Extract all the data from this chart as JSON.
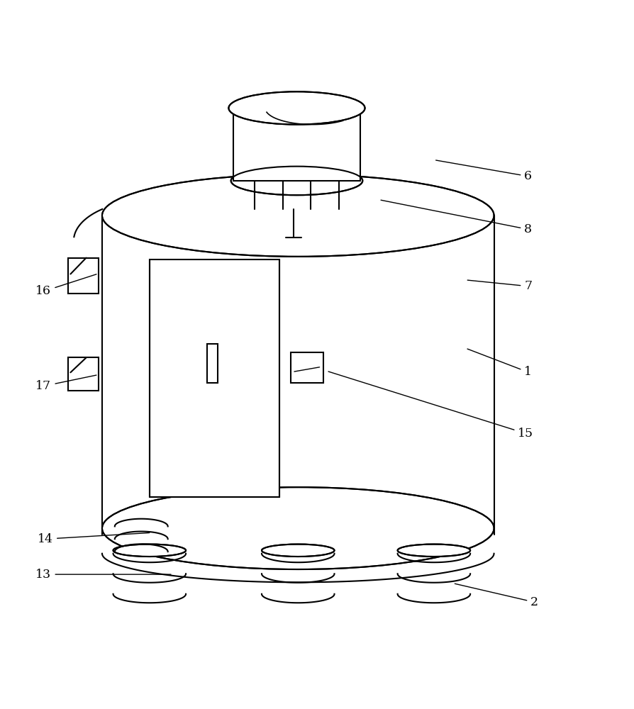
{
  "bg_color": "#ffffff",
  "line_color": "#000000",
  "fig_width": 8.94,
  "fig_height": 10.0
}
